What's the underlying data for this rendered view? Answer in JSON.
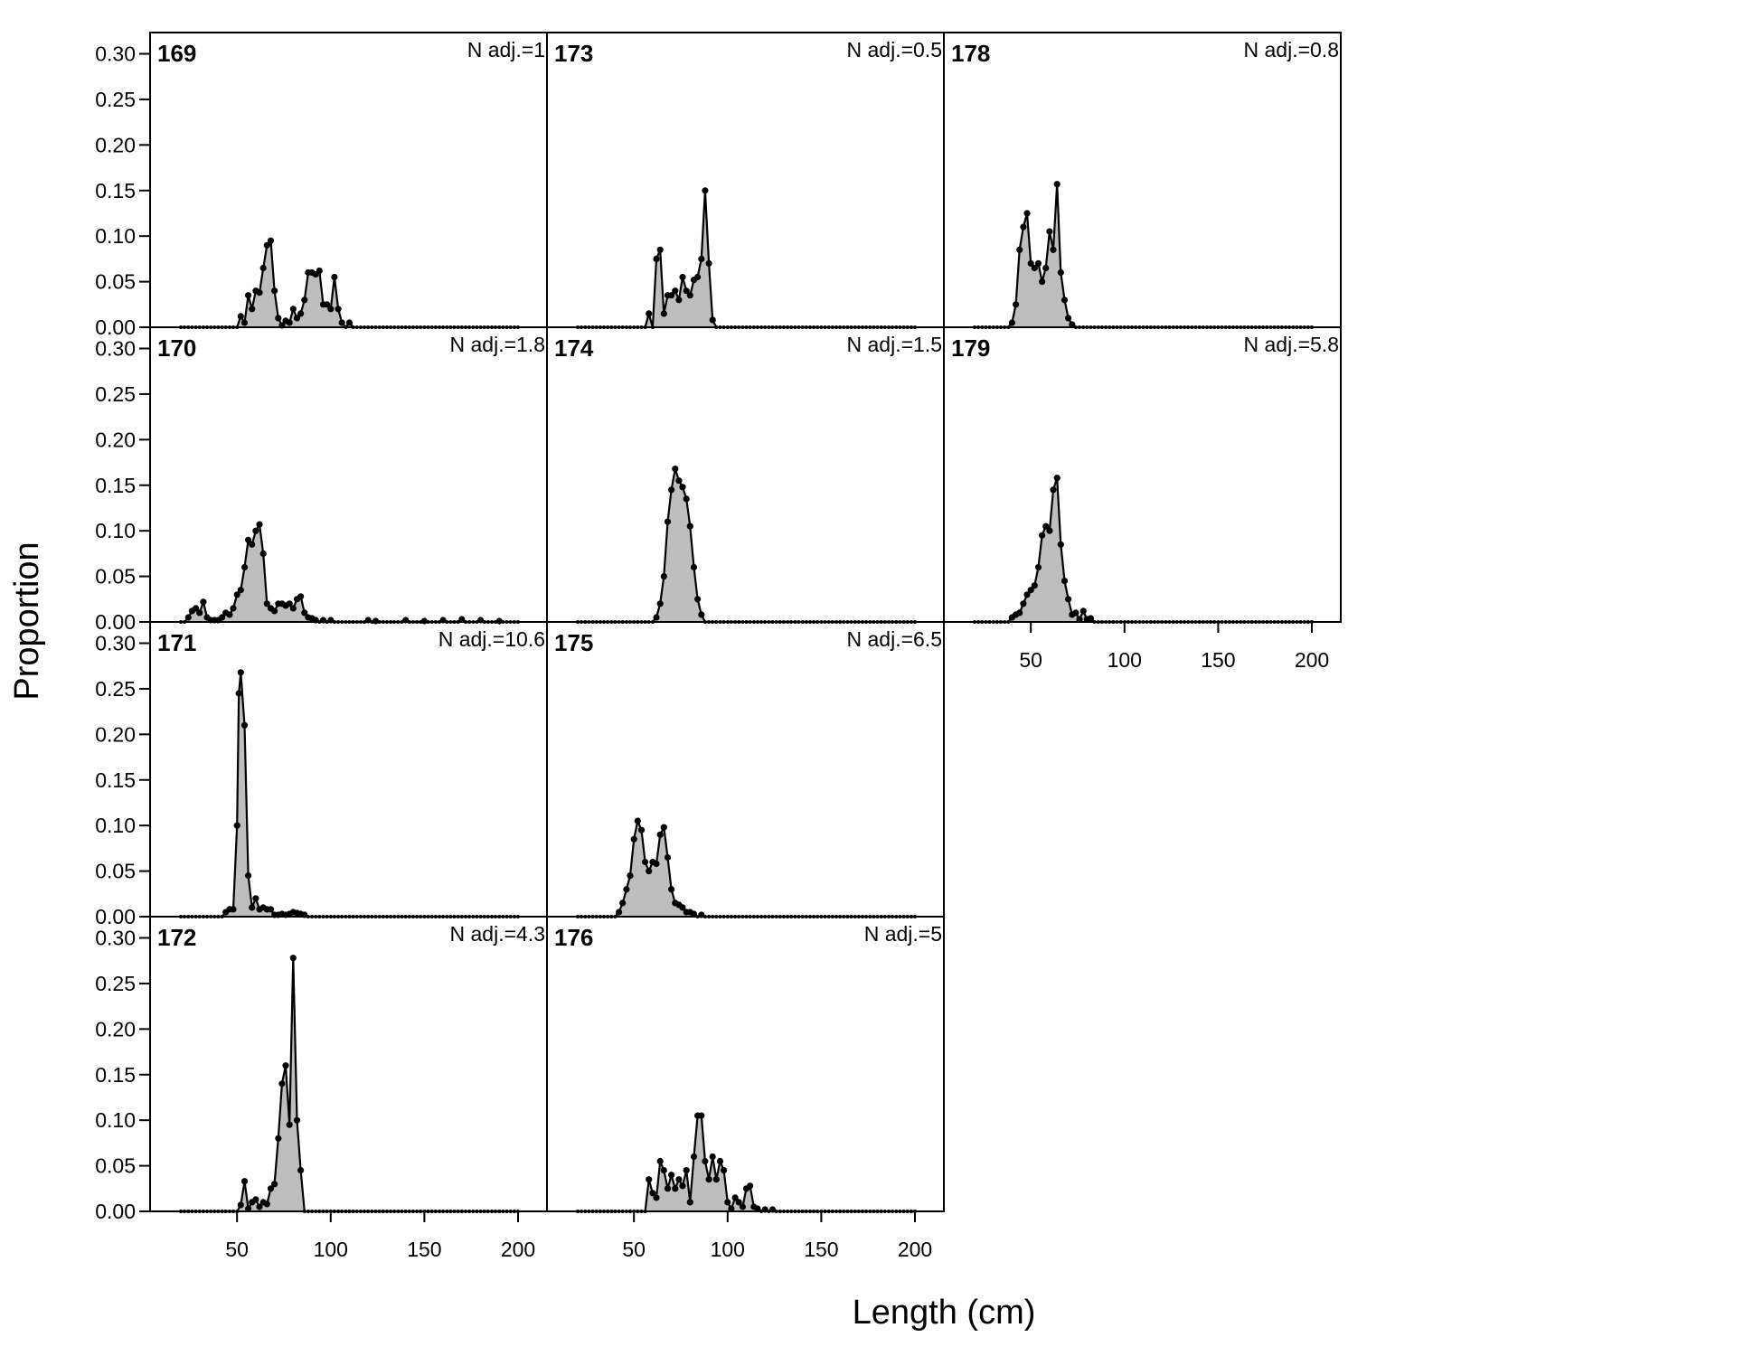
{
  "chart_data": {
    "type": "area",
    "xlabel": "Length (cm)",
    "ylabel": "Proportion",
    "xlim": [
      10,
      215
    ],
    "ylim": [
      0,
      0.32
    ],
    "x_ticks": [
      50,
      100,
      150,
      200
    ],
    "y_ticks": [
      0.0,
      0.05,
      0.1,
      0.15,
      0.2,
      0.25,
      0.3
    ],
    "x_tick_labels": [
      "50",
      "100",
      "150",
      "200"
    ],
    "y_tick_labels": [
      "0.00",
      "0.05",
      "0.10",
      "0.15",
      "0.20",
      "0.25",
      "0.30"
    ],
    "grid": false,
    "fill_color": "#bebebe",
    "line_color": "#000000",
    "layout": "3 columns, panels 169-172 / 173-176 / 178-179",
    "panels": [
      {
        "id": "169",
        "n_adj": "N adj.=1",
        "col": 0,
        "row": 0,
        "points": [
          [
            52,
            0.012
          ],
          [
            54,
            0.005
          ],
          [
            56,
            0.035
          ],
          [
            58,
            0.02
          ],
          [
            60,
            0.04
          ],
          [
            62,
            0.038
          ],
          [
            64,
            0.065
          ],
          [
            66,
            0.09
          ],
          [
            68,
            0.095
          ],
          [
            70,
            0.04
          ],
          [
            72,
            0.01
          ],
          [
            74,
            0.002
          ],
          [
            76,
            0.007
          ],
          [
            78,
            0.005
          ],
          [
            80,
            0.02
          ],
          [
            82,
            0.01
          ],
          [
            84,
            0.015
          ],
          [
            86,
            0.03
          ],
          [
            88,
            0.06
          ],
          [
            90,
            0.06
          ],
          [
            92,
            0.058
          ],
          [
            94,
            0.062
          ],
          [
            96,
            0.025
          ],
          [
            98,
            0.025
          ],
          [
            100,
            0.02
          ],
          [
            102,
            0.055
          ],
          [
            104,
            0.02
          ],
          [
            106,
            0.005
          ],
          [
            110,
            0.005
          ]
        ]
      },
      {
        "id": "170",
        "n_adj": "N adj.=1.8",
        "col": 0,
        "row": 1,
        "points": [
          [
            24,
            0.005
          ],
          [
            26,
            0.012
          ],
          [
            28,
            0.015
          ],
          [
            30,
            0.01
          ],
          [
            32,
            0.022
          ],
          [
            34,
            0.005
          ],
          [
            36,
            0.002
          ],
          [
            38,
            0.002
          ],
          [
            40,
            0.002
          ],
          [
            42,
            0.005
          ],
          [
            44,
            0.01
          ],
          [
            46,
            0.008
          ],
          [
            48,
            0.015
          ],
          [
            50,
            0.03
          ],
          [
            52,
            0.035
          ],
          [
            54,
            0.06
          ],
          [
            56,
            0.09
          ],
          [
            58,
            0.085
          ],
          [
            60,
            0.1
          ],
          [
            62,
            0.107
          ],
          [
            64,
            0.075
          ],
          [
            66,
            0.02
          ],
          [
            68,
            0.015
          ],
          [
            70,
            0.012
          ],
          [
            72,
            0.02
          ],
          [
            74,
            0.02
          ],
          [
            76,
            0.018
          ],
          [
            78,
            0.02
          ],
          [
            80,
            0.015
          ],
          [
            82,
            0.025
          ],
          [
            84,
            0.028
          ],
          [
            86,
            0.01
          ],
          [
            88,
            0.005
          ],
          [
            90,
            0.004
          ],
          [
            92,
            0.002
          ],
          [
            96,
            0.002
          ],
          [
            100,
            0.002
          ],
          [
            120,
            0.002
          ],
          [
            124,
            0.001
          ],
          [
            140,
            0.002
          ],
          [
            150,
            0.001
          ],
          [
            160,
            0.002
          ],
          [
            170,
            0.003
          ],
          [
            180,
            0.002
          ],
          [
            190,
            0.001
          ]
        ]
      },
      {
        "id": "171",
        "n_adj": "N adj.=10.6",
        "col": 0,
        "row": 2,
        "points": [
          [
            44,
            0.005
          ],
          [
            46,
            0.008
          ],
          [
            48,
            0.008
          ],
          [
            50,
            0.1
          ],
          [
            51,
            0.245
          ],
          [
            52,
            0.268
          ],
          [
            54,
            0.21
          ],
          [
            56,
            0.045
          ],
          [
            58,
            0.01
          ],
          [
            60,
            0.02
          ],
          [
            62,
            0.008
          ],
          [
            64,
            0.01
          ],
          [
            66,
            0.008
          ],
          [
            68,
            0.008
          ],
          [
            70,
            0.002
          ],
          [
            72,
            0.002
          ],
          [
            74,
            0.003
          ],
          [
            76,
            0.002
          ],
          [
            78,
            0.003
          ],
          [
            80,
            0.005
          ],
          [
            82,
            0.004
          ],
          [
            84,
            0.003
          ],
          [
            86,
            0.002
          ]
        ]
      },
      {
        "id": "172",
        "n_adj": "N adj.=4.3",
        "col": 0,
        "row": 3,
        "points": [
          [
            52,
            0.007
          ],
          [
            54,
            0.033
          ],
          [
            56,
            0.003
          ],
          [
            58,
            0.01
          ],
          [
            60,
            0.013
          ],
          [
            62,
            0.005
          ],
          [
            64,
            0.01
          ],
          [
            66,
            0.008
          ],
          [
            68,
            0.025
          ],
          [
            70,
            0.03
          ],
          [
            72,
            0.08
          ],
          [
            74,
            0.14
          ],
          [
            76,
            0.16
          ],
          [
            78,
            0.095
          ],
          [
            80,
            0.278
          ],
          [
            82,
            0.1
          ],
          [
            84,
            0.045
          ]
        ]
      },
      {
        "id": "173",
        "n_adj": "N adj.=0.5",
        "col": 1,
        "row": 0,
        "points": [
          [
            58,
            0.015
          ],
          [
            62,
            0.075
          ],
          [
            64,
            0.085
          ],
          [
            66,
            0.015
          ],
          [
            68,
            0.035
          ],
          [
            70,
            0.035
          ],
          [
            72,
            0.04
          ],
          [
            74,
            0.03
          ],
          [
            76,
            0.055
          ],
          [
            78,
            0.04
          ],
          [
            80,
            0.035
          ],
          [
            82,
            0.052
          ],
          [
            84,
            0.055
          ],
          [
            86,
            0.075
          ],
          [
            88,
            0.15
          ],
          [
            90,
            0.07
          ],
          [
            92,
            0.008
          ]
        ]
      },
      {
        "id": "174",
        "n_adj": "N adj.=1.5",
        "col": 1,
        "row": 1,
        "points": [
          [
            62,
            0.005
          ],
          [
            64,
            0.02
          ],
          [
            66,
            0.05
          ],
          [
            68,
            0.11
          ],
          [
            70,
            0.145
          ],
          [
            72,
            0.168
          ],
          [
            74,
            0.155
          ],
          [
            76,
            0.148
          ],
          [
            78,
            0.135
          ],
          [
            80,
            0.105
          ],
          [
            82,
            0.06
          ],
          [
            84,
            0.025
          ],
          [
            86,
            0.008
          ]
        ]
      },
      {
        "id": "175",
        "n_adj": "N adj.=6.5",
        "col": 1,
        "row": 2,
        "points": [
          [
            42,
            0.005
          ],
          [
            44,
            0.015
          ],
          [
            46,
            0.03
          ],
          [
            48,
            0.045
          ],
          [
            50,
            0.085
          ],
          [
            52,
            0.105
          ],
          [
            54,
            0.095
          ],
          [
            56,
            0.06
          ],
          [
            58,
            0.05
          ],
          [
            60,
            0.06
          ],
          [
            62,
            0.058
          ],
          [
            64,
            0.09
          ],
          [
            66,
            0.098
          ],
          [
            68,
            0.065
          ],
          [
            70,
            0.03
          ],
          [
            72,
            0.015
          ],
          [
            74,
            0.013
          ],
          [
            76,
            0.01
          ],
          [
            78,
            0.005
          ],
          [
            80,
            0.005
          ],
          [
            82,
            0.003
          ],
          [
            86,
            0.002
          ]
        ]
      },
      {
        "id": "176",
        "n_adj": "N adj.=5",
        "col": 1,
        "row": 3,
        "points": [
          [
            58,
            0.035
          ],
          [
            60,
            0.02
          ],
          [
            62,
            0.015
          ],
          [
            64,
            0.055
          ],
          [
            66,
            0.045
          ],
          [
            68,
            0.025
          ],
          [
            70,
            0.04
          ],
          [
            72,
            0.025
          ],
          [
            74,
            0.035
          ],
          [
            76,
            0.028
          ],
          [
            78,
            0.045
          ],
          [
            80,
            0.01
          ],
          [
            82,
            0.06
          ],
          [
            84,
            0.105
          ],
          [
            86,
            0.105
          ],
          [
            88,
            0.055
          ],
          [
            90,
            0.035
          ],
          [
            92,
            0.06
          ],
          [
            94,
            0.035
          ],
          [
            96,
            0.055
          ],
          [
            98,
            0.045
          ],
          [
            100,
            0.01
          ],
          [
            102,
            0.003
          ],
          [
            104,
            0.015
          ],
          [
            106,
            0.01
          ],
          [
            108,
            0.005
          ],
          [
            110,
            0.025
          ],
          [
            112,
            0.028
          ],
          [
            114,
            0.005
          ],
          [
            116,
            0.003
          ],
          [
            120,
            0.002
          ],
          [
            124,
            0.002
          ]
        ]
      },
      {
        "id": "178",
        "n_adj": "N adj.=0.8",
        "col": 2,
        "row": 0,
        "points": [
          [
            40,
            0.005
          ],
          [
            42,
            0.025
          ],
          [
            44,
            0.085
          ],
          [
            46,
            0.11
          ],
          [
            48,
            0.125
          ],
          [
            50,
            0.07
          ],
          [
            52,
            0.065
          ],
          [
            54,
            0.07
          ],
          [
            56,
            0.05
          ],
          [
            58,
            0.065
          ],
          [
            60,
            0.105
          ],
          [
            62,
            0.085
          ],
          [
            64,
            0.157
          ],
          [
            66,
            0.06
          ],
          [
            68,
            0.03
          ],
          [
            70,
            0.01
          ],
          [
            72,
            0.003
          ]
        ]
      },
      {
        "id": "179",
        "n_adj": "N adj.=5.8",
        "col": 2,
        "row": 1,
        "points": [
          [
            40,
            0.005
          ],
          [
            42,
            0.008
          ],
          [
            44,
            0.01
          ],
          [
            46,
            0.02
          ],
          [
            48,
            0.03
          ],
          [
            50,
            0.035
          ],
          [
            52,
            0.04
          ],
          [
            54,
            0.06
          ],
          [
            56,
            0.095
          ],
          [
            58,
            0.105
          ],
          [
            60,
            0.1
          ],
          [
            62,
            0.145
          ],
          [
            64,
            0.158
          ],
          [
            66,
            0.085
          ],
          [
            68,
            0.045
          ],
          [
            70,
            0.025
          ],
          [
            72,
            0.008
          ],
          [
            74,
            0.01
          ],
          [
            76,
            0.003
          ],
          [
            78,
            0.012
          ],
          [
            80,
            0.003
          ],
          [
            82,
            0.004
          ]
        ]
      }
    ]
  }
}
